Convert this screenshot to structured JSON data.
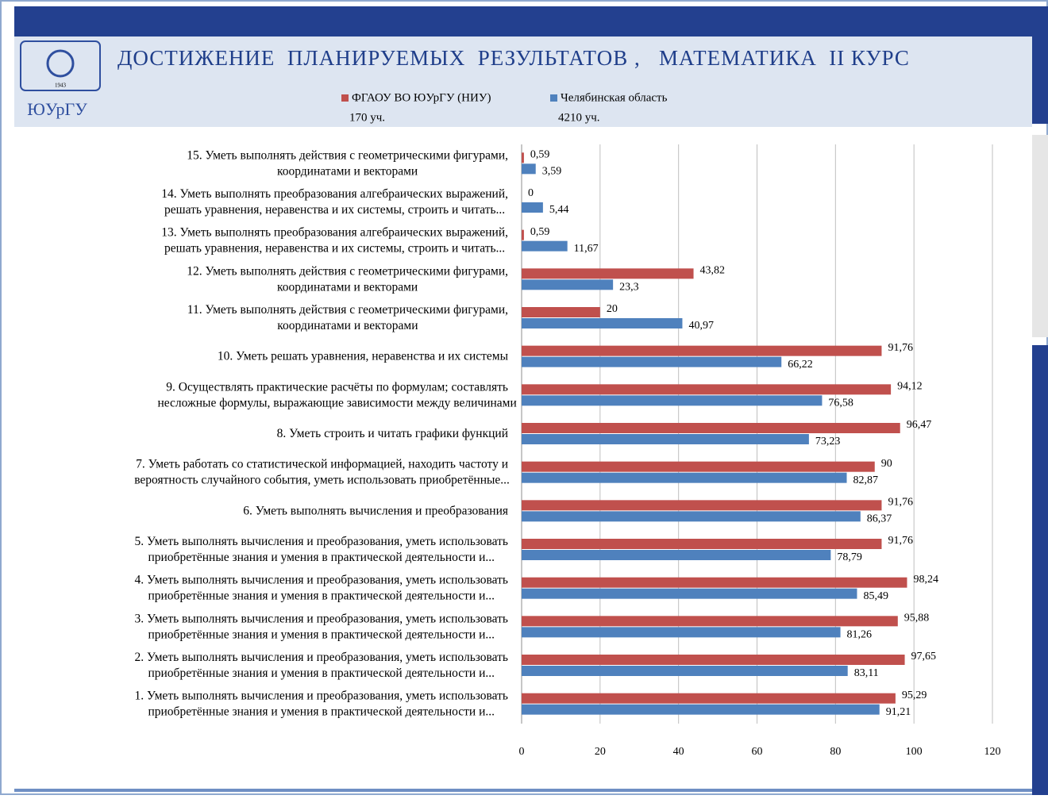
{
  "header": {
    "title": "ДОСТИЖЕНИЕ  ПЛАНИРУЕМЫХ  РЕЗУЛЬТАТОВ ,   МАТЕМАТИКА  II КУРС",
    "logo_text": "ЮУрГУ",
    "logo_year": "1943"
  },
  "chart_data": {
    "type": "barh",
    "categories": [
      [
        "1. Уметь выполнять вычисления и преобразования, уметь использовать",
        "приобретённые знания и умения в практической деятельности и..."
      ],
      [
        "2. Уметь выполнять вычисления и преобразования, уметь использовать",
        "приобретённые знания и умения в практической деятельности и..."
      ],
      [
        "3. Уметь выполнять вычисления и преобразования, уметь использовать",
        "приобретённые знания и умения в практической деятельности и..."
      ],
      [
        "4. Уметь выполнять вычисления и преобразования, уметь использовать",
        "приобретённые знания и умения в практической деятельности и..."
      ],
      [
        "5. Уметь выполнять вычисления и преобразования, уметь использовать",
        "приобретённые знания и умения в практической деятельности и..."
      ],
      [
        "6. Уметь выполнять вычисления и преобразования"
      ],
      [
        "7. Уметь работать со статистической информацией, находить частоту и",
        "вероятность случайного события, уметь использовать приобретённые..."
      ],
      [
        "8. Уметь строить и читать графики функций"
      ],
      [
        "9. Осуществлять практические расчёты по формулам; составлять",
        "несложные формулы, выражающие зависимости между величинами"
      ],
      [
        "10. Уметь решать уравнения, неравенства и их системы"
      ],
      [
        "11. Уметь выполнять действия с геометрическими фигурами,",
        "координатами и векторами"
      ],
      [
        "12. Уметь выполнять действия с геометрическими фигурами,",
        "координатами и векторами"
      ],
      [
        "13. Уметь выполнять преобразования алгебраических выражений,",
        "решать уравнения, неравенства и их системы, строить и читать..."
      ],
      [
        "14. Уметь выполнять преобразования алгебраических выражений,",
        "решать уравнения, неравенства и их системы, строить и читать..."
      ],
      [
        "15. Уметь выполнять действия с геометрическими фигурами,",
        "координатами и векторами"
      ]
    ],
    "series": [
      {
        "name": "ФГАОУ ВО ЮУрГУ (НИУ)",
        "note": "170 уч.",
        "color": "#c0504d",
        "values": [
          95.29,
          97.65,
          95.88,
          98.24,
          91.76,
          91.76,
          90,
          96.47,
          94.12,
          91.76,
          20,
          43.82,
          0.59,
          0,
          0.59
        ],
        "value_labels": [
          "95,29",
          "97,65",
          "95,88",
          "98,24",
          "91,76",
          "91,76",
          "90",
          "96,47",
          "94,12",
          "91,76",
          "20",
          "43,82",
          "0,59",
          "0",
          "0,59"
        ]
      },
      {
        "name": "Челябинская область",
        "note": "4210 уч.",
        "color": "#4f81bd",
        "values": [
          91.21,
          83.11,
          81.26,
          85.49,
          78.79,
          86.37,
          82.87,
          73.23,
          76.58,
          66.22,
          40.97,
          23.3,
          11.67,
          5.44,
          3.59
        ],
        "value_labels": [
          "91,21",
          "83,11",
          "81,26",
          "85,49",
          "78,79",
          "86,37",
          "82,87",
          "73,23",
          "76,58",
          "66,22",
          "40,97",
          "23,3",
          "11,67",
          "5,44",
          "3,59"
        ]
      }
    ],
    "xlim": [
      0,
      120
    ],
    "xticks": [
      0,
      20,
      40,
      60,
      80,
      100,
      120
    ],
    "grid": true
  }
}
